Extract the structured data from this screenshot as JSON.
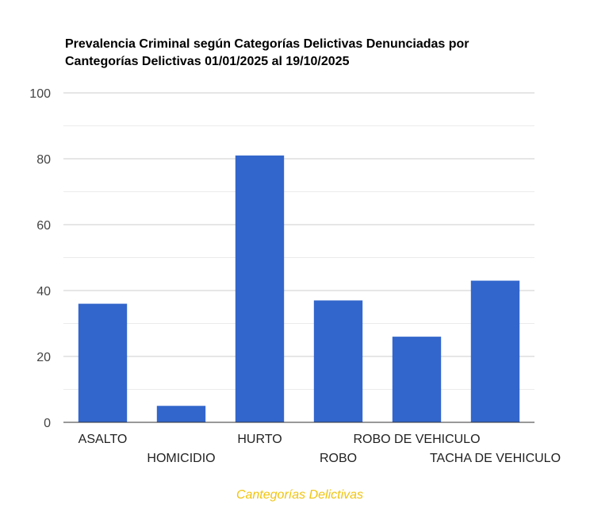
{
  "chart_data": {
    "type": "bar",
    "title_lines": [
      "Prevalencia Criminal según Categorías Delictivas Denunciadas por",
      "Cantegorías Delictivas 01/01/2025 al 19/10/2025"
    ],
    "categories": [
      "ASALTO",
      "HOMICIDIO",
      "HURTO",
      "ROBO",
      "ROBO DE VEHICULO",
      "TACHA DE VEHICULO"
    ],
    "values": [
      36,
      5,
      81,
      37,
      26,
      43
    ],
    "xlabel": "Cantegorías Delictivas",
    "ylabel": "",
    "ylim": [
      0,
      100
    ],
    "yticks": [
      0,
      20,
      40,
      60,
      80,
      100
    ],
    "minor_gridlines": true,
    "legend": "none"
  },
  "colors": {
    "bar": "#3366cc",
    "gridline": "#cccccc",
    "minor_gridline": "#ebebeb",
    "baseline": "#333333",
    "xlabel": "#f1c40f"
  }
}
